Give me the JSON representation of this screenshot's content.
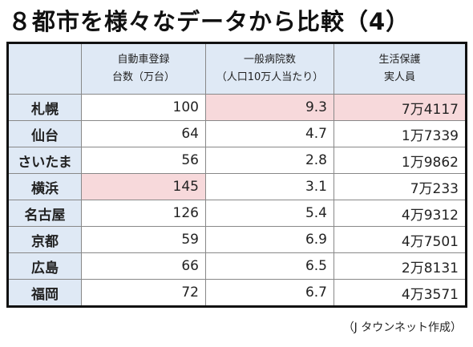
{
  "header": {
    "title": "８都市を様々なデータから比較（4）"
  },
  "table": {
    "columns": [
      "",
      "自動車登録\n台数（万台）",
      "一般病院数\n（人口10万人当たり）",
      "生活保護\n実人員"
    ],
    "rows": [
      [
        "札幌",
        100,
        9.3,
        "7万4117"
      ],
      [
        "仙台",
        64,
        4.7,
        "1万7339"
      ],
      [
        "さいたま",
        56,
        2.8,
        "1万9862"
      ],
      [
        "横浜",
        145,
        3.1,
        "7万233"
      ],
      [
        "名古屋",
        126,
        5.4,
        "4万9312"
      ],
      [
        "京都",
        59,
        6.9,
        "4万7501"
      ],
      [
        "広島",
        66,
        6.5,
        "2万8131"
      ],
      [
        "福岡",
        72,
        6.7,
        "4万3571"
      ]
    ],
    "highlighted_cells": [
      [
        0,
        2
      ],
      [
        0,
        3
      ],
      [
        3,
        1
      ]
    ],
    "highlight_color": "#f7d9db"
  },
  "footer": {
    "source": "（J タウンネット作成）"
  }
}
